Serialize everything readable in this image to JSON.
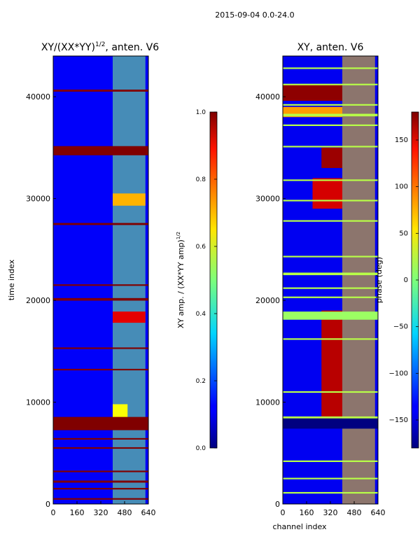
{
  "figure_title": "2015-09-04 0.0-24.0",
  "chart_data": [
    {
      "type": "heatmap",
      "title": "XY/(XX*YY)^{1/2}, anten. V6",
      "title_main": "XY/(XX*YY)",
      "title_exp": "1/2",
      "title_tail": ", anten. V6",
      "xlabel": "",
      "ylabel": "time index",
      "xlim": [
        0,
        640
      ],
      "ylim": [
        0,
        44000
      ],
      "xticks": [
        0,
        160,
        320,
        480,
        640
      ],
      "yticks": [
        0,
        10000,
        20000,
        30000,
        40000
      ],
      "colormap": "jet",
      "colorbar": {
        "label": "XY amp. / (XX*YY amp)^{1/2}",
        "label_main": "XY amp. / (XX*YY amp)",
        "label_exp": "1/2",
        "range": [
          0.0,
          1.0
        ],
        "ticks": [
          0.0,
          0.2,
          0.4,
          0.6,
          0.8,
          1.0
        ],
        "tick_labels": [
          "0.0",
          "0.2",
          "0.4",
          "0.6",
          "0.8",
          "1.0"
        ]
      },
      "background_value": 0.12,
      "band_channel_range": [
        400,
        620
      ],
      "band_value": 0.5,
      "rows": [
        {
          "time": 34700,
          "height": 900,
          "value": 1.0
        },
        {
          "time": 7900,
          "height": 1300,
          "value": 1.0
        },
        {
          "time": 40600,
          "height": 200,
          "value": 1.0
        },
        {
          "time": 27500,
          "height": 200,
          "value": 1.0
        },
        {
          "time": 20100,
          "height": 250,
          "value": 1.0
        },
        {
          "time": 21500,
          "height": 150,
          "value": 1.0
        },
        {
          "time": 15300,
          "height": 150,
          "value": 1.0
        },
        {
          "time": 13200,
          "height": 150,
          "value": 1.0
        },
        {
          "time": 6400,
          "height": 150,
          "value": 1.0
        },
        {
          "time": 5500,
          "height": 150,
          "value": 1.0
        },
        {
          "time": 3200,
          "height": 150,
          "value": 1.0
        },
        {
          "time": 2200,
          "height": 200,
          "value": 1.0
        },
        {
          "time": 1500,
          "height": 150,
          "value": 1.0
        },
        {
          "time": 500,
          "height": 150,
          "value": 1.0
        }
      ],
      "patches": [
        {
          "t0": 17800,
          "t1": 18900,
          "c0": 400,
          "c1": 620,
          "value": 0.9
        },
        {
          "t0": 8500,
          "t1": 9800,
          "c0": 400,
          "c1": 500,
          "value": 0.62
        },
        {
          "t0": 29300,
          "t1": 30500,
          "c0": 400,
          "c1": 620,
          "value": 0.7
        }
      ]
    },
    {
      "type": "heatmap",
      "title": "XY, anten. V6",
      "xlabel": "channel index",
      "ylabel": "",
      "xlim": [
        0,
        640
      ],
      "ylim": [
        0,
        44000
      ],
      "xticks": [
        0,
        160,
        320,
        480,
        640
      ],
      "yticks": [
        0,
        10000,
        20000,
        30000,
        40000
      ],
      "colormap": "jet",
      "colorbar": {
        "label": "phase (deg)",
        "range": [
          -180,
          180
        ],
        "ticks": [
          -150,
          -100,
          -50,
          0,
          50,
          100,
          150
        ],
        "tick_labels": [
          "−150",
          "−100",
          "−50",
          "0",
          "50",
          "100",
          "150"
        ]
      },
      "background_value": -140,
      "band_channel_range": [
        400,
        620
      ],
      "band_value": 60,
      "rows": [
        {
          "time": 42800,
          "height": 150,
          "value": 20
        },
        {
          "time": 41200,
          "height": 150,
          "value": 20
        },
        {
          "time": 39200,
          "height": 150,
          "value": 20
        },
        {
          "time": 38200,
          "height": 250,
          "value": 20
        },
        {
          "time": 37200,
          "height": 150,
          "value": 20
        },
        {
          "time": 35100,
          "height": 150,
          "value": 20
        },
        {
          "time": 31800,
          "height": 150,
          "value": 20
        },
        {
          "time": 29800,
          "height": 150,
          "value": 20
        },
        {
          "time": 27800,
          "height": 150,
          "value": 20
        },
        {
          "time": 24300,
          "height": 150,
          "value": 20
        },
        {
          "time": 22600,
          "height": 250,
          "value": 20
        },
        {
          "time": 21200,
          "height": 150,
          "value": 20
        },
        {
          "time": 20300,
          "height": 150,
          "value": 20
        },
        {
          "time": 16200,
          "height": 150,
          "value": 20
        },
        {
          "time": 11000,
          "height": 150,
          "value": 20
        },
        {
          "time": 8500,
          "height": 200,
          "value": 20
        },
        {
          "time": 4200,
          "height": 150,
          "value": 20
        },
        {
          "time": 2500,
          "height": 150,
          "value": 20
        },
        {
          "time": 1100,
          "height": 150,
          "value": 20
        },
        {
          "time": 7900,
          "height": 1000,
          "value": -180
        },
        {
          "time": 18500,
          "height": 800,
          "value": 10
        }
      ],
      "patches": [
        {
          "t0": 39600,
          "t1": 41200,
          "c0": 0,
          "c1": 400,
          "value": 175
        },
        {
          "t0": 33000,
          "t1": 35000,
          "c0": 260,
          "c1": 400,
          "value": 170
        },
        {
          "t0": 29000,
          "t1": 32000,
          "c0": 200,
          "c1": 400,
          "value": 150
        },
        {
          "t0": 8200,
          "t1": 19000,
          "c0": 260,
          "c1": 400,
          "value": 160
        },
        {
          "t0": 38000,
          "t1": 39000,
          "c0": 0,
          "c1": 400,
          "value": 80
        }
      ]
    }
  ]
}
